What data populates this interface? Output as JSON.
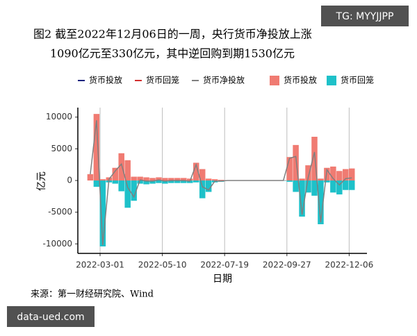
{
  "chart_data": {
    "type": "bar-line",
    "title": "图2 截至2022年12月06日的一周，央行货币净投放上涨",
    "subtitle": "1090亿元至330亿元，其中逆回购到期1530亿元",
    "y_label": "亿元",
    "x_label": "日期",
    "source": "来源：第一财经研究院、Wind",
    "watermark_top": "TG: MYYJJPP",
    "watermark_bottom": "data-ued.com",
    "legend_lines": [
      {
        "name": "货币投放",
        "color": "#1a237e"
      },
      {
        "name": "货币回笼",
        "color": "#d32f2f"
      }
    ],
    "x": [
      "2022-02-18",
      "2022-02-25",
      "2022-03-04",
      "2022-03-11",
      "2022-03-18",
      "2022-03-25",
      "2022-04-01",
      "2022-04-08",
      "2022-04-15",
      "2022-04-22",
      "2022-04-29",
      "2022-05-06",
      "2022-05-13",
      "2022-05-20",
      "2022-05-27",
      "2022-06-03",
      "2022-06-10",
      "2022-06-17",
      "2022-06-24",
      "2022-07-01",
      "2022-07-08",
      "2022-07-15",
      "2022-07-22",
      "2022-07-29",
      "2022-08-05",
      "2022-08-12",
      "2022-08-19",
      "2022-08-26",
      "2022-09-02",
      "2022-09-09",
      "2022-09-16",
      "2022-09-23",
      "2022-09-30",
      "2022-10-07",
      "2022-10-14",
      "2022-10-21",
      "2022-10-28",
      "2022-11-04",
      "2022-11-11",
      "2022-11-18",
      "2022-11-25",
      "2022-12-02",
      "2022-12-09"
    ],
    "series": [
      {
        "name": "货币投放",
        "type": "bar",
        "color": "#f07b72",
        "values": [
          1000,
          10500,
          200,
          500,
          2000,
          4300,
          3200,
          600,
          600,
          500,
          400,
          500,
          400,
          400,
          400,
          400,
          300,
          2800,
          1800,
          300,
          200,
          100,
          50,
          50,
          50,
          50,
          50,
          50,
          50,
          50,
          50,
          50,
          3700,
          5600,
          300,
          2400,
          6900,
          300,
          2000,
          2200,
          1500,
          1800,
          1900
        ]
      },
      {
        "name": "货币回笼",
        "type": "bar",
        "color": "#1ec1c9",
        "values": [
          0,
          -1000,
          -10400,
          -300,
          -500,
          -1700,
          -4300,
          -3200,
          -500,
          -600,
          -500,
          -400,
          -500,
          -400,
          -400,
          -400,
          -400,
          -300,
          -2800,
          -1800,
          -300,
          -200,
          -50,
          -50,
          -50,
          -50,
          -50,
          -50,
          -50,
          -50,
          -50,
          -50,
          -200,
          -1800,
          -5700,
          -1900,
          -2400,
          -6900,
          -300,
          -1900,
          -2200,
          -1500,
          -1500
        ]
      },
      {
        "name": "货币净投放",
        "type": "line",
        "color": "#7f7f7f",
        "values": [
          1000,
          9500,
          -10200,
          200,
          1500,
          2600,
          -1100,
          -2600,
          100,
          -100,
          -100,
          100,
          -100,
          0,
          0,
          0,
          -100,
          2500,
          -1000,
          -1500,
          -100,
          -100,
          0,
          0,
          0,
          0,
          0,
          0,
          0,
          0,
          0,
          0,
          3500,
          3800,
          -5400,
          500,
          4500,
          -6600,
          1700,
          300,
          -700,
          300,
          400
        ]
      }
    ],
    "xlim": [
      "2022-02-04",
      "2022-12-26"
    ],
    "xticks": [
      "2022-03-01",
      "2022-05-10",
      "2022-07-19",
      "2022-09-27",
      "2022-12-06"
    ],
    "ylim": [
      -11500,
      11500
    ],
    "yticks": [
      -10000,
      -5000,
      0,
      5000,
      10000
    ],
    "grid": "x"
  }
}
